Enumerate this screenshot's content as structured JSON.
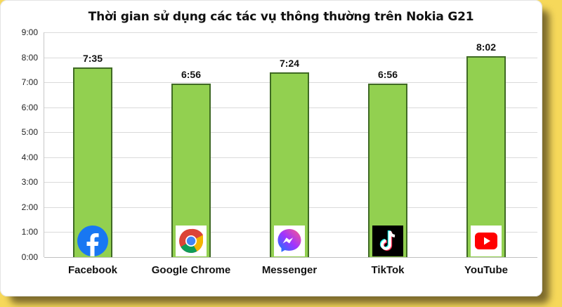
{
  "chart_data": {
    "type": "bar",
    "title": "Thời gian sử dụng các tác vụ thông thường trên Nokia G21",
    "xlabel": "",
    "ylabel": "",
    "categories": [
      "Facebook",
      "Google Chrome",
      "Messenger",
      "TikTok",
      "YouTube"
    ],
    "values": [
      "7:35",
      "6:56",
      "7:24",
      "6:56",
      "8:02"
    ],
    "values_minutes": [
      455,
      416,
      444,
      416,
      482
    ],
    "yticks": [
      "0:00",
      "1:00",
      "2:00",
      "3:00",
      "4:00",
      "5:00",
      "6:00",
      "7:00",
      "8:00",
      "9:00"
    ],
    "ylim": [
      "0:00",
      "9:00"
    ],
    "grid": true,
    "legend": "none",
    "bar_color": "#92d050",
    "bar_border_color": "#3f6a24",
    "icons": [
      "facebook-icon",
      "chrome-icon",
      "messenger-icon",
      "tiktok-icon",
      "youtube-icon"
    ]
  }
}
